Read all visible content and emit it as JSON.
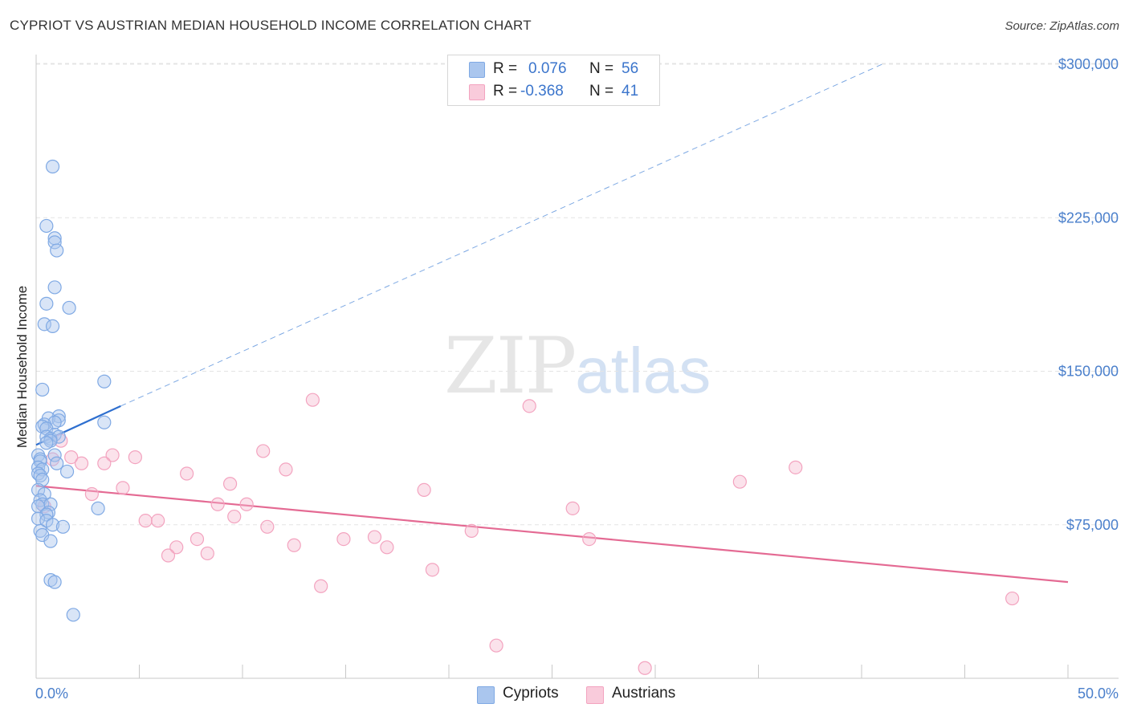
{
  "title": "CYPRIOT VS AUSTRIAN MEDIAN HOUSEHOLD INCOME CORRELATION CHART",
  "source": "Source: ZipAtlas.com",
  "watermark": {
    "zip": "ZIP",
    "atlas": "atlas"
  },
  "legend_stats": [
    {
      "r_label": "R =",
      "r_value": "0.076",
      "n_label": "N =",
      "n_value": "56",
      "color": "#aac6ee"
    },
    {
      "r_label": "R =",
      "r_value": "-0.368",
      "n_label": "N =",
      "n_value": "41",
      "color": "#f6b7cc"
    }
  ],
  "bottom_legend": [
    {
      "label": "Cypriots",
      "color": "#aac6ee"
    },
    {
      "label": "Austrians",
      "color": "#f6b7cc"
    }
  ],
  "chart_data": {
    "type": "scatter",
    "title": "CYPRIOT VS AUSTRIAN MEDIAN HOUSEHOLD INCOME CORRELATION CHART",
    "xlabel": "",
    "ylabel": "Median Household Income",
    "xlim": [
      0,
      50
    ],
    "ylim": [
      0,
      315000
    ],
    "x_tick_labels": [
      {
        "value": 0,
        "label": "0.0%"
      },
      {
        "value": 50,
        "label": "50.0%"
      }
    ],
    "y_ticks": [
      {
        "value": 75000,
        "label": "$75,000"
      },
      {
        "value": 150000,
        "label": "$150,000"
      },
      {
        "value": 225000,
        "label": "$225,000"
      },
      {
        "value": 300000,
        "label": "$300,000"
      }
    ],
    "series": [
      {
        "name": "Cypriots",
        "color": "#7fa9e4",
        "line_color": "#2e6fcf",
        "trend": {
          "x0": 0,
          "y0": 114000,
          "x1": 4.1,
          "y1": 133000,
          "x_ext_end": 41,
          "y_ext_end": 300000
        },
        "points": [
          [
            0.8,
            250000
          ],
          [
            0.5,
            221000
          ],
          [
            0.9,
            215000
          ],
          [
            0.9,
            213000
          ],
          [
            1.0,
            209000
          ],
          [
            0.9,
            191000
          ],
          [
            0.5,
            183000
          ],
          [
            1.6,
            181000
          ],
          [
            0.4,
            173000
          ],
          [
            0.8,
            172000
          ],
          [
            3.3,
            145000
          ],
          [
            0.3,
            141000
          ],
          [
            1.1,
            128000
          ],
          [
            0.6,
            127000
          ],
          [
            1.1,
            126000
          ],
          [
            0.9,
            125000
          ],
          [
            0.4,
            124000
          ],
          [
            3.3,
            125000
          ],
          [
            0.3,
            123000
          ],
          [
            0.5,
            122000
          ],
          [
            0.9,
            119000
          ],
          [
            0.5,
            118000
          ],
          [
            0.7,
            117000
          ],
          [
            1.1,
            118000
          ],
          [
            0.7,
            116000
          ],
          [
            0.5,
            115000
          ],
          [
            0.1,
            109000
          ],
          [
            0.9,
            109000
          ],
          [
            0.2,
            107000
          ],
          [
            0.2,
            106000
          ],
          [
            1.0,
            105000
          ],
          [
            0.1,
            103000
          ],
          [
            0.3,
            102000
          ],
          [
            1.5,
            101000
          ],
          [
            0.1,
            100000
          ],
          [
            0.2,
            99000
          ],
          [
            0.3,
            97000
          ],
          [
            0.1,
            92000
          ],
          [
            0.4,
            90000
          ],
          [
            0.2,
            87000
          ],
          [
            0.3,
            85000
          ],
          [
            0.7,
            85000
          ],
          [
            0.1,
            84000
          ],
          [
            3.0,
            83000
          ],
          [
            0.6,
            81000
          ],
          [
            0.5,
            80000
          ],
          [
            0.1,
            78000
          ],
          [
            0.5,
            77000
          ],
          [
            0.8,
            75000
          ],
          [
            1.3,
            74000
          ],
          [
            0.2,
            72000
          ],
          [
            0.3,
            70000
          ],
          [
            0.7,
            67000
          ],
          [
            0.7,
            48000
          ],
          [
            0.9,
            47000
          ],
          [
            1.8,
            31000
          ]
        ]
      },
      {
        "name": "Austrians",
        "color": "#f3a3bf",
        "line_color": "#e46a93",
        "trend": {
          "x0": 0,
          "y0": 94000,
          "x1": 50,
          "y1": 47000
        },
        "points": [
          [
            13.4,
            136000
          ],
          [
            23.9,
            133000
          ],
          [
            11.0,
            111000
          ],
          [
            1.2,
            116000
          ],
          [
            3.7,
            109000
          ],
          [
            4.8,
            108000
          ],
          [
            1.7,
            108000
          ],
          [
            0.8,
            107000
          ],
          [
            2.2,
            105000
          ],
          [
            3.3,
            105000
          ],
          [
            36.8,
            103000
          ],
          [
            12.1,
            102000
          ],
          [
            7.3,
            100000
          ],
          [
            34.1,
            96000
          ],
          [
            9.4,
            95000
          ],
          [
            4.2,
            93000
          ],
          [
            18.8,
            92000
          ],
          [
            2.7,
            90000
          ],
          [
            8.8,
            85000
          ],
          [
            10.2,
            85000
          ],
          [
            0.4,
            84000
          ],
          [
            26.0,
            83000
          ],
          [
            9.6,
            79000
          ],
          [
            5.3,
            77000
          ],
          [
            5.9,
            77000
          ],
          [
            11.2,
            74000
          ],
          [
            21.1,
            72000
          ],
          [
            16.4,
            69000
          ],
          [
            7.8,
            68000
          ],
          [
            14.9,
            68000
          ],
          [
            26.8,
            68000
          ],
          [
            17.0,
            64000
          ],
          [
            12.5,
            65000
          ],
          [
            6.8,
            64000
          ],
          [
            8.3,
            61000
          ],
          [
            6.4,
            60000
          ],
          [
            19.2,
            53000
          ],
          [
            13.8,
            45000
          ],
          [
            47.3,
            39000
          ],
          [
            22.3,
            16000
          ],
          [
            29.5,
            5000
          ]
        ]
      }
    ]
  }
}
